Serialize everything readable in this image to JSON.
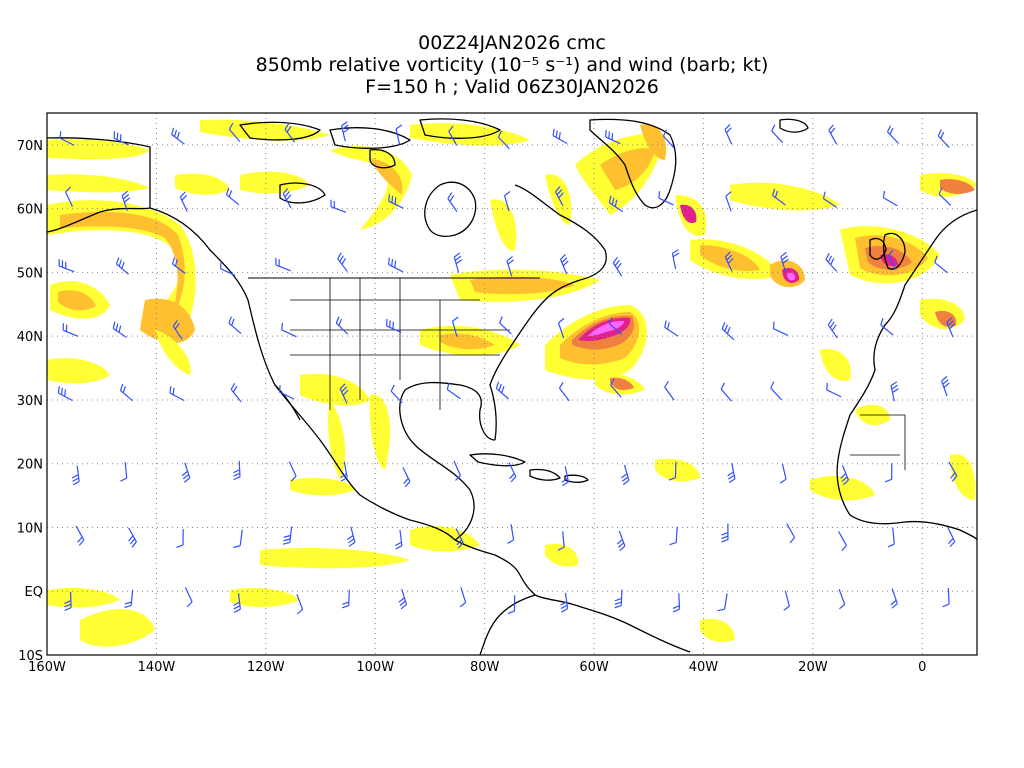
{
  "header": {
    "line1": "00Z24JAN2026 cmc",
    "line2": "850mb relative vorticity (10⁻⁵ s⁻¹) and wind (barb; kt)",
    "line3": "F=150 h ; Valid 06Z30JAN2026"
  },
  "map": {
    "lon_range": [
      -160,
      10
    ],
    "lat_range": [
      -10,
      75
    ],
    "lon_ticks": [
      "160W",
      "140W",
      "120W",
      "100W",
      "80W",
      "60W",
      "40W",
      "20W",
      "0"
    ],
    "lat_ticks": [
      "10S",
      "EQ",
      "10N",
      "20N",
      "30N",
      "40N",
      "50N",
      "60N",
      "70N"
    ],
    "colors": {
      "vort_low": "#ffff33",
      "vort_mid": "#ffc030",
      "vort_high": "#f08040",
      "vort_peak": "#e0208c",
      "vort_max": "#ff66ff",
      "barb": "#3050ff",
      "coast": "#000000",
      "grid": "#888888"
    }
  }
}
